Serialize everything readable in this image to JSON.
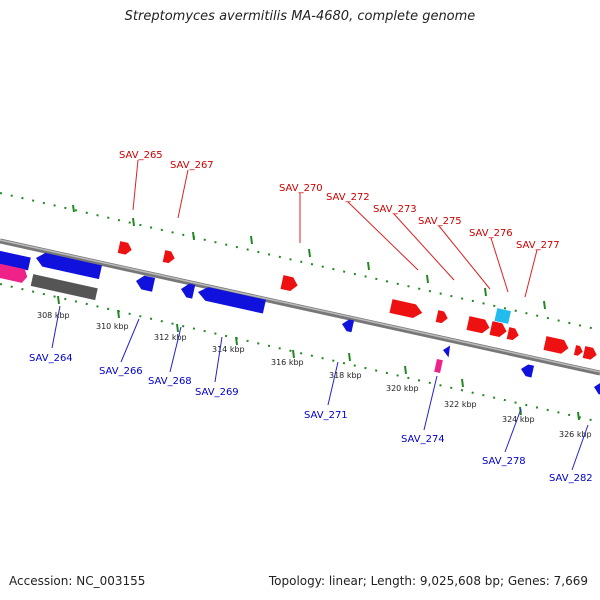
{
  "title": "Streptomyces avermitilis MA-4680, complete genome",
  "footer": {
    "accession": "Accession: NC_003155",
    "stats": "Topology: linear; Length: 9,025,608 bp; Genes: 7,669"
  },
  "colors": {
    "forward_gene": "#ee1111",
    "reverse_gene": "#1111dd",
    "rna_gene": "#ee2288",
    "pseudo_gene": "#555555",
    "misc_gene": "#22bbee",
    "backbone": "#888888",
    "tick": "#228822",
    "top_label": "#cc0000",
    "bottom_label": "#0000cc"
  },
  "scale_labels": [
    "308 kbp",
    "310 kbp",
    "312 kbp",
    "314 kbp",
    "316 kbp",
    "318 kbp",
    "320 kbp",
    "322 kbp",
    "324 kbp",
    "326 kbp"
  ],
  "top_gene_labels": [
    "SAV_265",
    "SAV_267",
    "SAV_270",
    "SAV_272",
    "SAV_273",
    "SAV_275",
    "SAV_276",
    "SAV_277"
  ],
  "bottom_gene_labels": [
    "SAV_264",
    "SAV_266",
    "SAV_268",
    "SAV_269",
    "SAV_271",
    "SAV_274",
    "SAV_278",
    "SAV_282"
  ]
}
